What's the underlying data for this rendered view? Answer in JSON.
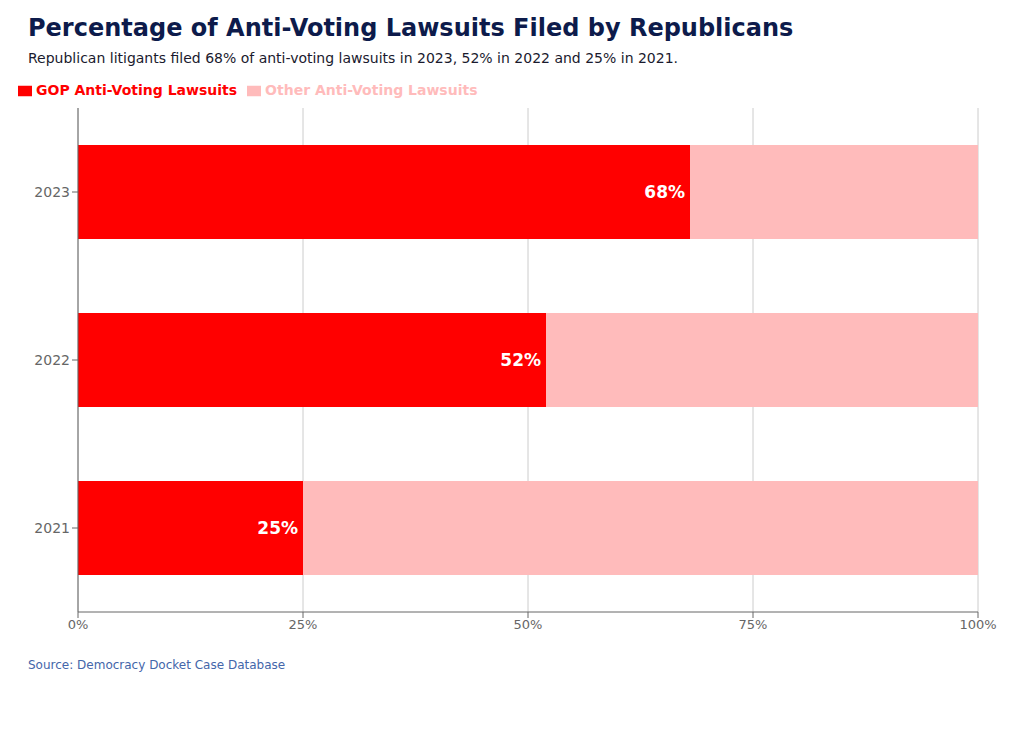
{
  "chart_data": {
    "type": "bar",
    "orientation": "horizontal",
    "stacked": true,
    "title": "Percentage of Anti-Voting Lawsuits Filed by Republicans",
    "subtitle": "Republican litigants filed 68% of anti-voting lawsuits in 2023, 52% in 2022 and 25% in 2021.",
    "annotations": [
      "Source: Democracy Docket Case Database"
    ],
    "categories": [
      "2023",
      "2022",
      "2021"
    ],
    "series": [
      {
        "name": "GOP Anti-Voting Lawsuits",
        "color": "#FF0000",
        "values": [
          68,
          52,
          25
        ],
        "data_labels": true,
        "value_labels": [
          "68%",
          "52%",
          "25%"
        ]
      },
      {
        "name": "Other Anti-Voting Lawsuits",
        "color": "#FFBBBB",
        "values": [
          32,
          48,
          75
        ]
      }
    ],
    "xlim": [
      0,
      100
    ],
    "xticks": [
      {
        "value": 0,
        "label": "0%"
      },
      {
        "value": 25,
        "label": "25%"
      },
      {
        "value": 50,
        "label": "50%"
      },
      {
        "value": 75,
        "label": "75%"
      },
      {
        "value": 100,
        "label": "100%"
      }
    ],
    "grid": true,
    "legend": "top"
  }
}
